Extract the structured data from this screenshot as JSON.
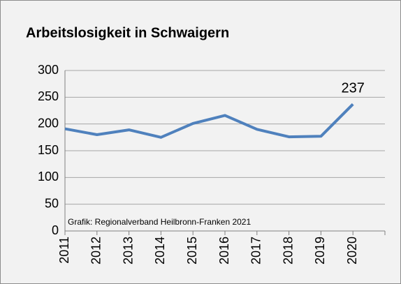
{
  "chart_data": {
    "type": "line",
    "title": "Arbeitslosigkeit in Schwaigern",
    "categories": [
      "2011",
      "2012",
      "2013",
      "2014",
      "2015",
      "2016",
      "2017",
      "2018",
      "2019",
      "2020"
    ],
    "series": [
      {
        "name": "Arbeitslosigkeit",
        "color": "#4f81bd",
        "values": [
          191,
          180,
          189,
          175,
          201,
          216,
          190,
          176,
          177,
          237
        ],
        "value_labels": [
          null,
          null,
          null,
          null,
          null,
          null,
          null,
          null,
          null,
          "237"
        ]
      }
    ],
    "ylim": [
      0,
      300
    ],
    "yticks": [
      0,
      50,
      100,
      150,
      200,
      250,
      300
    ],
    "grid": true,
    "annotations": [
      "Grafik: Regionalverband Heilbronn-Franken 2021"
    ]
  }
}
